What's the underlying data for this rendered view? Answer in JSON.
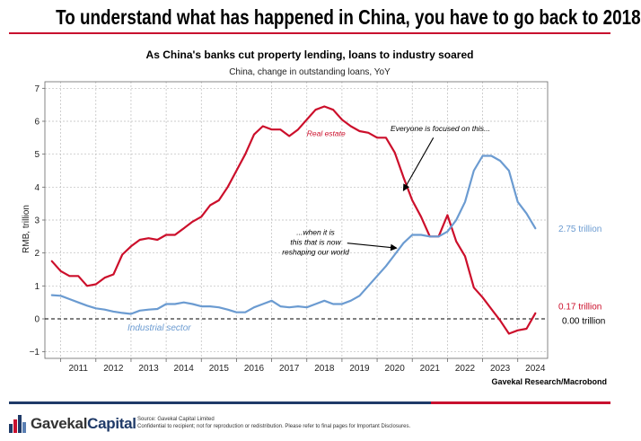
{
  "headline": "To understand what has happened in China, you have to go back to 2018",
  "chart_data": {
    "type": "line",
    "title": "As China's banks cut property lending, loans to industry soared",
    "subtitle": "China, change in outstanding loans, YoY",
    "ylabel": "RMB, trillion",
    "xlabel": "",
    "ylim": [
      -1.2,
      7.2
    ],
    "xlim": [
      2010.55,
      2024.85
    ],
    "y_ticks": [
      -1,
      0,
      1,
      2,
      3,
      4,
      5,
      6,
      7
    ],
    "x_tick_labels": [
      "2011",
      "2012",
      "2013",
      "2014",
      "2015",
      "2016",
      "2017",
      "2018",
      "2019",
      "2020",
      "2021",
      "2022",
      "2023",
      "2024"
    ],
    "grid": true,
    "colors": {
      "real_estate": "#cc0f2b",
      "industrial": "#6b9bd1",
      "zero_line": "#000000",
      "accent": "#c8102e"
    },
    "series": [
      {
        "name": "Real estate",
        "x": [
          2010.75,
          2011.0,
          2011.25,
          2011.5,
          2011.75,
          2012.0,
          2012.25,
          2012.5,
          2012.75,
          2013.0,
          2013.25,
          2013.5,
          2013.75,
          2014.0,
          2014.25,
          2014.5,
          2014.75,
          2015.0,
          2015.25,
          2015.5,
          2015.75,
          2016.0,
          2016.25,
          2016.5,
          2016.75,
          2017.0,
          2017.25,
          2017.5,
          2017.75,
          2018.0,
          2018.25,
          2018.5,
          2018.75,
          2019.0,
          2019.25,
          2019.5,
          2019.75,
          2020.0,
          2020.25,
          2020.5,
          2020.75,
          2021.0,
          2021.25,
          2021.5,
          2021.75,
          2022.0,
          2022.25,
          2022.5,
          2022.75,
          2023.0,
          2023.25,
          2023.5,
          2023.75,
          2024.0,
          2024.25,
          2024.5
        ],
        "values": [
          1.75,
          1.45,
          1.3,
          1.3,
          1.0,
          1.05,
          1.25,
          1.35,
          1.95,
          2.2,
          2.4,
          2.45,
          2.4,
          2.55,
          2.55,
          2.75,
          2.95,
          3.1,
          3.45,
          3.6,
          4.0,
          4.5,
          5.0,
          5.6,
          5.85,
          5.75,
          5.75,
          5.55,
          5.75,
          6.05,
          6.35,
          6.45,
          6.35,
          6.05,
          5.85,
          5.7,
          5.65,
          5.5,
          5.5,
          5.05,
          4.3,
          3.6,
          3.1,
          2.5,
          2.5,
          3.15,
          2.35,
          1.9,
          0.95,
          0.65,
          0.3,
          -0.05,
          -0.45,
          -0.35,
          -0.3,
          0.17
        ]
      },
      {
        "name": "Industrial sector",
        "x": [
          2010.75,
          2011.0,
          2011.25,
          2011.5,
          2011.75,
          2012.0,
          2012.25,
          2012.5,
          2012.75,
          2013.0,
          2013.25,
          2013.5,
          2013.75,
          2014.0,
          2014.25,
          2014.5,
          2014.75,
          2015.0,
          2015.25,
          2015.5,
          2015.75,
          2016.0,
          2016.25,
          2016.5,
          2016.75,
          2017.0,
          2017.25,
          2017.5,
          2017.75,
          2018.0,
          2018.25,
          2018.5,
          2018.75,
          2019.0,
          2019.25,
          2019.5,
          2019.75,
          2020.0,
          2020.25,
          2020.5,
          2020.75,
          2021.0,
          2021.25,
          2021.5,
          2021.75,
          2022.0,
          2022.25,
          2022.5,
          2022.75,
          2023.0,
          2023.25,
          2023.5,
          2023.75,
          2024.0,
          2024.25,
          2024.5
        ],
        "values": [
          0.72,
          0.7,
          0.6,
          0.5,
          0.4,
          0.32,
          0.28,
          0.22,
          0.18,
          0.15,
          0.25,
          0.28,
          0.3,
          0.45,
          0.45,
          0.5,
          0.45,
          0.38,
          0.38,
          0.35,
          0.28,
          0.2,
          0.2,
          0.35,
          0.45,
          0.55,
          0.38,
          0.35,
          0.38,
          0.35,
          0.45,
          0.55,
          0.45,
          0.45,
          0.55,
          0.7,
          1.0,
          1.3,
          1.6,
          1.95,
          2.3,
          2.55,
          2.55,
          2.5,
          2.5,
          2.65,
          3.0,
          3.55,
          4.5,
          4.95,
          4.95,
          4.8,
          4.5,
          3.55,
          3.2,
          2.75
        ]
      }
    ],
    "labels": {
      "real_estate": "Real estate",
      "industrial": "Industrial sector"
    },
    "end_values": {
      "industrial": "2.75 trillion",
      "real_estate": "0.17 trillion",
      "zero": "0.00 trillion"
    },
    "annotations": [
      {
        "text": "Everyone is focused on this...",
        "points_to": [
          2020.75,
          3.9
        ]
      },
      {
        "text": "...when it is this that is now reshaping our world",
        "lines": [
          "...when it is",
          "this that is now",
          "reshaping our world"
        ],
        "points_to": [
          2020.55,
          2.15
        ]
      }
    ]
  },
  "credit": "Gavekal Research/Macrobond",
  "footer": {
    "brand": "Gavekal",
    "brand_suffix": "Capital",
    "source_line1": "Source: Gavekal Capital Limited",
    "source_line2": "Confidential to recipient; not for reproduction or redistribution. Please refer to final pages for Important Disclosures."
  }
}
